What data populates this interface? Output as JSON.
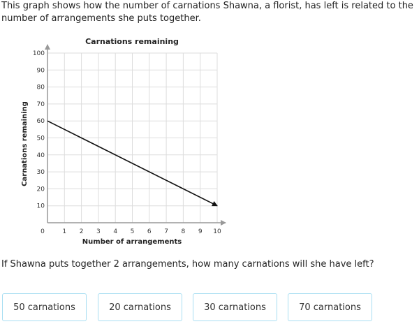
{
  "question": "This graph shows how the number of carnations Shawna, a florist, has left is related to the number of arrangements she puts together.",
  "prompt": "If Shawna puts together 2 arrangements, how many carnations will she have left?",
  "choices": [
    "50 carnations",
    "20 carnations",
    "30 carnations",
    "70 carnations"
  ],
  "chart_data": {
    "type": "line",
    "title": "Carnations remaining",
    "xlabel": "Number of arrangements",
    "ylabel": "Carnations remaining",
    "xlim": [
      0,
      10
    ],
    "ylim": [
      0,
      100
    ],
    "xticks": [
      "0",
      "1",
      "2",
      "3",
      "4",
      "5",
      "6",
      "7",
      "8",
      "9",
      "10"
    ],
    "yticks": [
      "10",
      "20",
      "30",
      "40",
      "50",
      "60",
      "70",
      "80",
      "90",
      "100"
    ],
    "grid": true,
    "series": [
      {
        "x": [
          0,
          10
        ],
        "y": [
          60,
          10
        ],
        "arrow_end": true
      }
    ],
    "colors": {
      "line": "#111111",
      "grid": "#dddddd",
      "axis": "#999999",
      "choice_border": "#a8def2"
    }
  }
}
